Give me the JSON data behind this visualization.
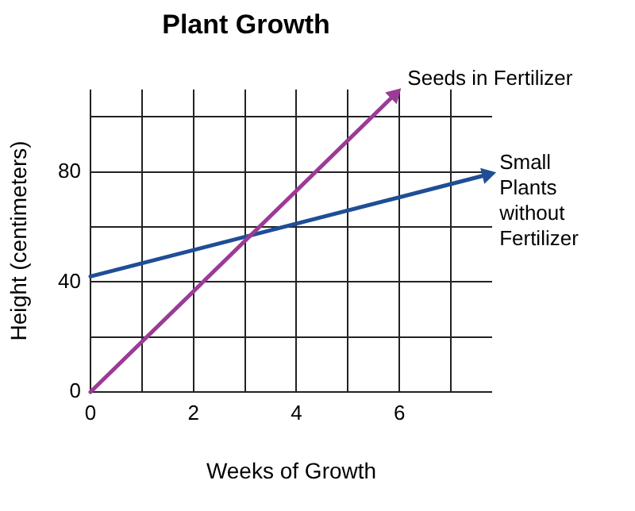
{
  "chart_data": {
    "type": "line",
    "title": "Plant Growth",
    "xlabel": "Weeks of Growth",
    "ylabel": "Height (centimeters)",
    "xlim": [
      0,
      7.8
    ],
    "xticks": [
      0,
      {
        "value": 1,
        "label": null
      },
      2,
      {
        "value": 3,
        "label": null
      },
      4,
      {
        "value": 5,
        "label": null
      },
      6,
      {
        "value": 7,
        "label": null
      }
    ],
    "ylim": [
      0,
      110
    ],
    "yticks": [
      0,
      {
        "value": 20,
        "label": null
      },
      40,
      {
        "value": 60,
        "label": null
      },
      80,
      {
        "value": 100,
        "label": null
      }
    ],
    "grid": true,
    "legend": "right",
    "marker": "triangle",
    "line_style": "solid",
    "series": [
      {
        "name": "Seeds in Fertilizer",
        "color": "#9b3b96",
        "x": [
          0,
          5.9
        ],
        "values": [
          0,
          108
        ]
      },
      {
        "name": "Small Plants without Fertilizer",
        "color": "#1f4e96",
        "x": [
          0,
          7.7
        ],
        "values": [
          42,
          79
        ]
      }
    ]
  }
}
